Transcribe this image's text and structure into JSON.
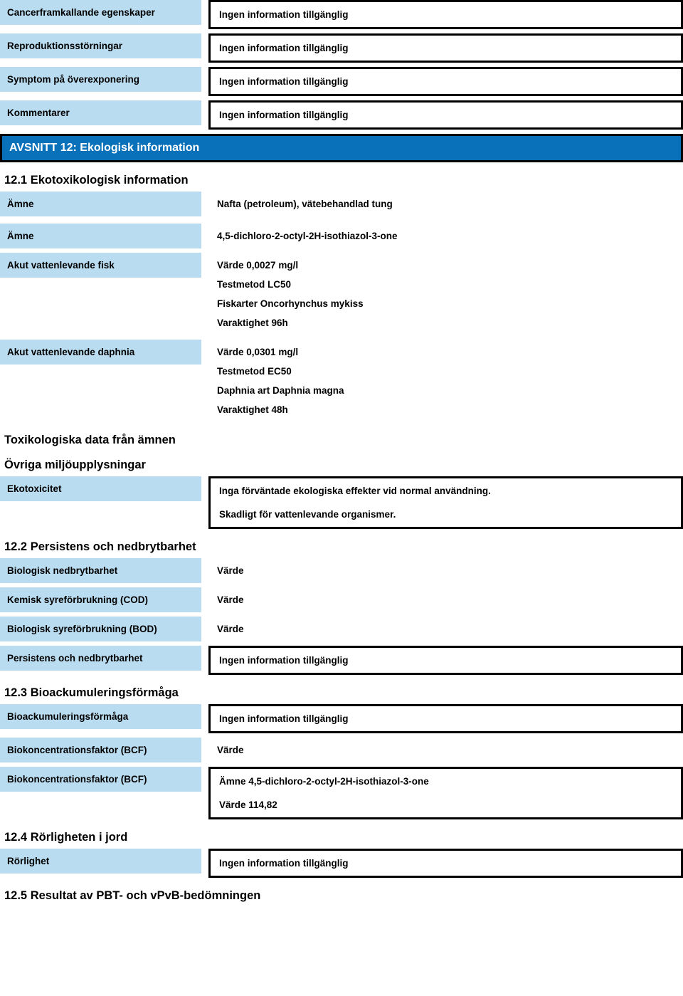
{
  "colors": {
    "label_bg": "#b9dcf0",
    "section_bg": "#0971b9",
    "border": "#000000",
    "text": "#000000",
    "section_text": "#ffffff"
  },
  "noInfo": "Ingen information tillgänglig",
  "topRows": [
    {
      "label": "Cancerframkallande egenskaper",
      "value": "Ingen information tillgänglig"
    },
    {
      "label": "Reproduktionsstörningar",
      "value": "Ingen information tillgänglig"
    },
    {
      "label": "Symptom på överexponering",
      "value": "Ingen information tillgänglig"
    },
    {
      "label": "Kommentarer",
      "value": "Ingen information tillgänglig"
    }
  ],
  "section12": {
    "title": "AVSNITT 12: Ekologisk information",
    "s12_1": {
      "heading": "12.1 Ekotoxikologisk information",
      "amne1": {
        "label": "Ämne",
        "value": "Nafta (petroleum), vätebehandlad tung"
      },
      "amne2": {
        "label": "Ämne",
        "value": "4,5-dichloro-2-octyl-2H-isothiazol-3-one"
      },
      "fish": {
        "label": "Akut vattenlevande fisk",
        "lines": [
          "Värde   0,0027 mg/l",
          "Testmetod    LC50",
          "Fiskarter    Oncorhynchus mykiss",
          "Varaktighet     96h"
        ]
      },
      "daphnia": {
        "label": "Akut vattenlevande daphnia",
        "lines": [
          "Värde   0,0301 mg/l",
          "Testmetod    EC50",
          "Daphnia art     Daphnia magna",
          "Varaktighet     48h"
        ]
      },
      "toxHeading": "Toxikologiska data från ämnen",
      "envHeading": "Övriga miljöupplysningar",
      "ekotox": {
        "label": "Ekotoxicitet",
        "lines": [
          "Inga förväntade ekologiska effekter vid normal användning.",
          "Skadligt för vattenlevande organismer."
        ]
      }
    },
    "s12_2": {
      "heading": "12.2 Persistens och nedbrytbarhet",
      "rows": [
        {
          "label": "Biologisk nedbrytbarhet",
          "value": "Värde",
          "boxed": false
        },
        {
          "label": "Kemisk syreförbrukning (COD)",
          "value": "Värde",
          "boxed": false
        },
        {
          "label": "Biologisk syreförbrukning (BOD)",
          "value": "Värde",
          "boxed": false
        },
        {
          "label": "Persistens och nedbrytbarhet",
          "value": "Ingen information tillgänglig",
          "boxed": true
        }
      ]
    },
    "s12_3": {
      "heading": "12.3 Bioackumuleringsförmåga",
      "row1": {
        "label": "Bioackumuleringsförmåga",
        "value": "Ingen information tillgänglig"
      },
      "row2": {
        "label": "Biokoncentrationsfaktor (BCF)",
        "value": "Värde"
      },
      "row3": {
        "label": "Biokoncentrationsfaktor (BCF)",
        "lines": [
          "Ämne   4,5-dichloro-2-octyl-2H-isothiazol-3-one",
          "Värde   114,82"
        ]
      }
    },
    "s12_4": {
      "heading": "12.4 Rörligheten i jord",
      "row": {
        "label": "Rörlighet",
        "value": "Ingen information tillgänglig"
      }
    },
    "s12_5": {
      "heading": "12.5 Resultat av PBT- och vPvB-bedömningen"
    }
  }
}
